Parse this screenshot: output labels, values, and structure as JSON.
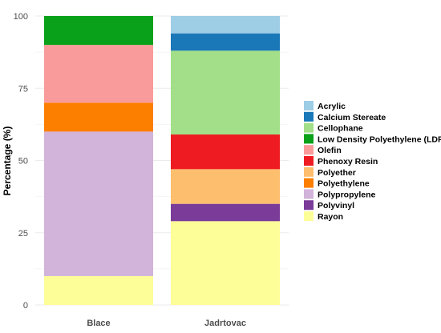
{
  "chart_data": {
    "type": "bar",
    "stacked": true,
    "ylabel": "Percentage (%)",
    "xlabel": "",
    "ylim": [
      0,
      100
    ],
    "yticks": [
      0,
      25,
      50,
      75,
      100
    ],
    "categories": [
      "Blace",
      "Jadrtovac"
    ],
    "grid": true,
    "legend_position": "right",
    "series": [
      {
        "name": "Acrylic",
        "color": "#9ecde6",
        "values": [
          0,
          6
        ]
      },
      {
        "name": "Calcium Stereate",
        "color": "#1a78b8",
        "values": [
          0,
          6
        ]
      },
      {
        "name": "Cellophane",
        "color": "#a2df88",
        "values": [
          0,
          29
        ]
      },
      {
        "name": "Low Density Polyethylene (LDPE)",
        "color": "#0aa11a",
        "values": [
          10,
          0
        ]
      },
      {
        "name": "Olefin",
        "color": "#f99b9a",
        "values": [
          20,
          0
        ]
      },
      {
        "name": "Phenoxy Resin",
        "color": "#ee1c22",
        "values": [
          0,
          12
        ]
      },
      {
        "name": "Polyether",
        "color": "#fdbe6e",
        "values": [
          0,
          12
        ]
      },
      {
        "name": "Polyethylene",
        "color": "#fd7f00",
        "values": [
          10,
          0
        ]
      },
      {
        "name": "Polypropylene",
        "color": "#d2b3d9",
        "values": [
          50,
          0
        ]
      },
      {
        "name": "Polyvinyl",
        "color": "#7a3b99",
        "values": [
          0,
          6
        ]
      },
      {
        "name": "Rayon",
        "color": "#fefe98",
        "values": [
          10,
          29
        ]
      }
    ]
  }
}
